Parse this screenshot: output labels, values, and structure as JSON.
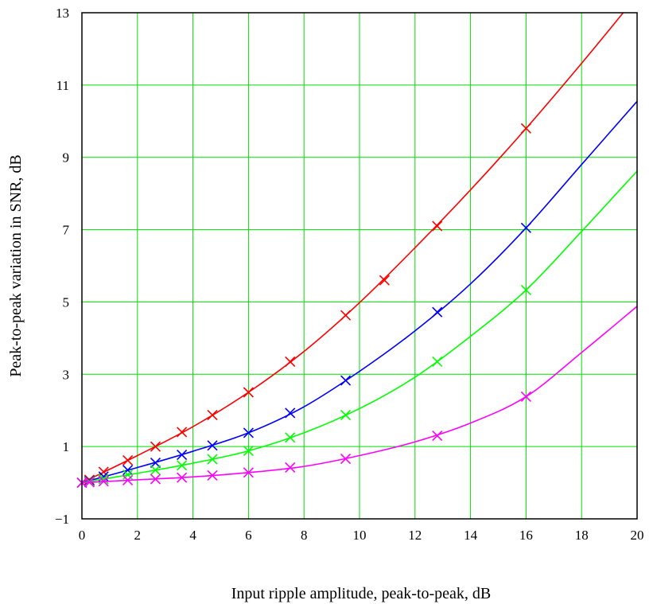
{
  "chart_data": {
    "type": "line",
    "title": "",
    "xlabel": "Input ripple amplitude, peak-to-peak, dB",
    "ylabel": "Peak-to-peak variation in SNR, dB",
    "xlim": [
      0,
      20
    ],
    "ylim": [
      -1,
      13
    ],
    "x_ticks": [
      0,
      2,
      4,
      6,
      8,
      10,
      12,
      14,
      16,
      18,
      20
    ],
    "y_ticks": [
      -1,
      1,
      3,
      5,
      7,
      9,
      11,
      13
    ],
    "y_tick_labels": [
      "−1",
      "1",
      "3",
      "5",
      "7",
      "9",
      "11",
      "13"
    ],
    "grid": true,
    "grid_color": "#00dd00",
    "legend": "none",
    "series": [
      {
        "color": "#ff0000",
        "marker": "x",
        "points": [
          [
            0.0,
            0.0
          ],
          [
            0.27,
            0.08
          ],
          [
            0.78,
            0.3
          ],
          [
            1.65,
            0.62
          ],
          [
            2.65,
            1.0
          ],
          [
            3.6,
            1.4
          ],
          [
            4.7,
            1.87
          ],
          [
            6.0,
            2.5
          ],
          [
            7.5,
            3.35
          ],
          [
            9.5,
            4.63
          ],
          [
            10.9,
            5.6
          ],
          [
            12.8,
            7.1
          ],
          [
            16.0,
            9.8
          ]
        ],
        "curve": [
          [
            0.0,
            0.0
          ],
          [
            2.0,
            0.75
          ],
          [
            4.0,
            1.55
          ],
          [
            6.0,
            2.5
          ],
          [
            8.0,
            3.63
          ],
          [
            10.0,
            4.98
          ],
          [
            12.0,
            6.5
          ],
          [
            14.0,
            8.1
          ],
          [
            16.0,
            9.8
          ],
          [
            18.0,
            11.6
          ],
          [
            19.5,
            13.0
          ]
        ]
      },
      {
        "color": "#0000ff",
        "marker": "x",
        "points": [
          [
            0.0,
            0.0
          ],
          [
            0.27,
            0.05
          ],
          [
            0.78,
            0.17
          ],
          [
            1.65,
            0.35
          ],
          [
            2.65,
            0.55
          ],
          [
            3.6,
            0.77
          ],
          [
            4.7,
            1.03
          ],
          [
            6.0,
            1.38
          ],
          [
            7.5,
            1.93
          ],
          [
            9.5,
            2.83
          ],
          [
            12.8,
            4.72
          ],
          [
            16.0,
            7.05
          ]
        ],
        "curve": [
          [
            0.0,
            0.0
          ],
          [
            2.0,
            0.42
          ],
          [
            4.0,
            0.87
          ],
          [
            6.0,
            1.38
          ],
          [
            8.0,
            2.1
          ],
          [
            10.0,
            3.08
          ],
          [
            12.0,
            4.2
          ],
          [
            14.0,
            5.5
          ],
          [
            16.0,
            7.05
          ],
          [
            18.0,
            8.8
          ],
          [
            20.0,
            10.55
          ]
        ]
      },
      {
        "color": "#00ff00",
        "marker": "x",
        "points": [
          [
            0.0,
            0.0
          ],
          [
            0.27,
            0.03
          ],
          [
            0.78,
            0.1
          ],
          [
            1.65,
            0.22
          ],
          [
            2.65,
            0.35
          ],
          [
            3.6,
            0.48
          ],
          [
            4.7,
            0.65
          ],
          [
            6.0,
            0.88
          ],
          [
            7.5,
            1.25
          ],
          [
            9.5,
            1.87
          ],
          [
            12.8,
            3.35
          ],
          [
            16.0,
            5.33
          ]
        ],
        "curve": [
          [
            0.0,
            0.0
          ],
          [
            2.0,
            0.26
          ],
          [
            4.0,
            0.54
          ],
          [
            6.0,
            0.88
          ],
          [
            8.0,
            1.38
          ],
          [
            10.0,
            2.05
          ],
          [
            12.0,
            2.92
          ],
          [
            14.0,
            4.05
          ],
          [
            16.0,
            5.33
          ],
          [
            18.0,
            6.95
          ],
          [
            20.0,
            8.62
          ]
        ]
      },
      {
        "color": "#ff00ff",
        "marker": "x",
        "points": [
          [
            0.0,
            0.0
          ],
          [
            0.27,
            0.01
          ],
          [
            0.78,
            0.04
          ],
          [
            1.65,
            0.07
          ],
          [
            2.65,
            0.1
          ],
          [
            3.6,
            0.14
          ],
          [
            4.7,
            0.2
          ],
          [
            6.0,
            0.28
          ],
          [
            7.5,
            0.42
          ],
          [
            9.5,
            0.66
          ],
          [
            12.8,
            1.3
          ],
          [
            16.0,
            2.38
          ]
        ],
        "curve": [
          [
            0.0,
            0.0
          ],
          [
            2.0,
            0.08
          ],
          [
            4.0,
            0.16
          ],
          [
            6.0,
            0.28
          ],
          [
            8.0,
            0.45
          ],
          [
            10.0,
            0.75
          ],
          [
            12.0,
            1.13
          ],
          [
            14.0,
            1.65
          ],
          [
            16.0,
            2.38
          ],
          [
            18.0,
            3.6
          ],
          [
            20.0,
            4.88
          ]
        ]
      }
    ]
  }
}
